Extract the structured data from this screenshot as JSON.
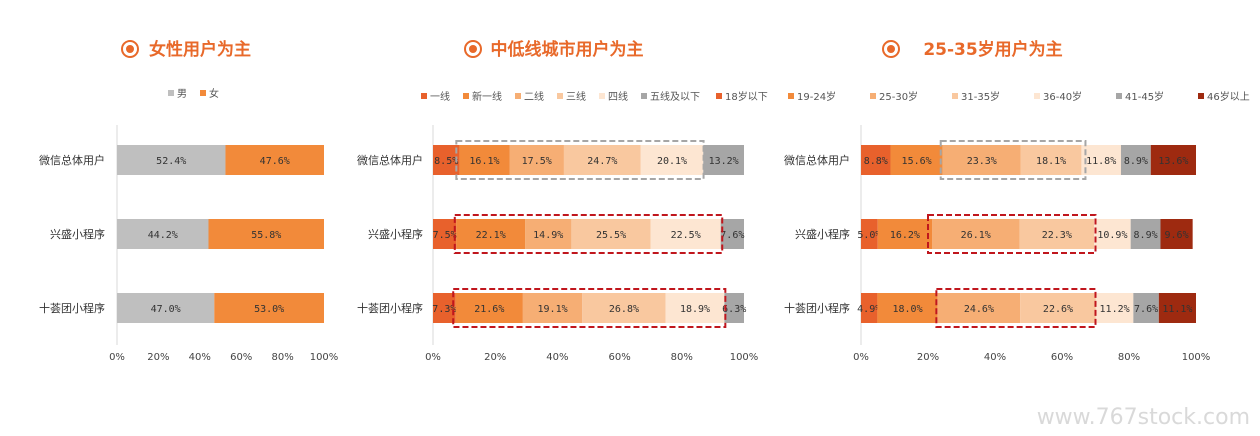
{
  "watermark": "www.767stock.com",
  "chart_data": [
    {
      "type": "bar",
      "orientation": "horizontal",
      "stacked": true,
      "title": "女性用户为主",
      "categories": [
        "微信总体用户",
        "兴盛小程序",
        "十荟团小程序"
      ],
      "series": [
        {
          "name": "男",
          "color": "#bfbfbf",
          "values": [
            52.4,
            44.2,
            47.0
          ]
        },
        {
          "name": "女",
          "color": "#f28a3a",
          "values": [
            47.6,
            55.8,
            53.0
          ]
        }
      ],
      "labels": [
        [
          "52.4%",
          "47.6%"
        ],
        [
          "44.2%",
          "55.8%"
        ],
        [
          "47.0%",
          "53.0%"
        ]
      ],
      "xticks": [
        "0%",
        "20%",
        "40%",
        "60%",
        "80%",
        "100%"
      ],
      "xlim": [
        0,
        100
      ],
      "legend": "top-center",
      "highlight_boxes": []
    },
    {
      "type": "bar",
      "orientation": "horizontal",
      "stacked": true,
      "title": "中低线城市用户为主",
      "categories": [
        "微信总体用户",
        "兴盛小程序",
        "十荟团小程序"
      ],
      "series": [
        {
          "name": "一线",
          "color": "#e8612c",
          "values": [
            8.5,
            7.5,
            7.3
          ]
        },
        {
          "name": "新一线",
          "color": "#f28a3a",
          "values": [
            16.1,
            22.1,
            21.6
          ]
        },
        {
          "name": "二线",
          "color": "#f6ae74",
          "values": [
            17.5,
            14.9,
            19.1
          ]
        },
        {
          "name": "三线",
          "color": "#f9c89f",
          "values": [
            24.7,
            25.5,
            26.8
          ]
        },
        {
          "name": "四线",
          "color": "#fde6d2",
          "values": [
            20.1,
            22.5,
            18.9
          ]
        },
        {
          "name": "五线及以下",
          "color": "#a6a6a6",
          "values": [
            13.2,
            7.6,
            6.3
          ]
        }
      ],
      "labels": [
        [
          "8.5%",
          "16.1%",
          "17.5%",
          "24.7%",
          "20.1%",
          "13.2%"
        ],
        [
          "7.5%",
          "22.1%",
          "14.9%",
          "25.5%",
          "22.5%",
          "7.6%"
        ],
        [
          "7.3%",
          "21.6%",
          "19.1%",
          "26.8%",
          "18.9%",
          "6.3%"
        ]
      ],
      "xticks": [
        "0%",
        "20%",
        "40%",
        "60%",
        "80%",
        "100%"
      ],
      "xlim": [
        0,
        100
      ],
      "legend": "top-center",
      "highlight_boxes": [
        {
          "row": 0,
          "from": 7.5,
          "to": 87,
          "style": "gray-dashed"
        },
        {
          "row": 1,
          "from": 7,
          "to": 93,
          "style": "red-dashed"
        },
        {
          "row": 2,
          "from": 6.5,
          "to": 94,
          "style": "red-dashed"
        }
      ]
    },
    {
      "type": "bar",
      "orientation": "horizontal",
      "stacked": true,
      "title": "25-35岁用户为主",
      "categories": [
        "微信总体用户",
        "兴盛小程序",
        "十荟团小程序"
      ],
      "series": [
        {
          "name": "18岁以下",
          "color": "#e8612c",
          "values": [
            8.8,
            5.0,
            4.9
          ]
        },
        {
          "name": "19-24岁",
          "color": "#f28a3a",
          "values": [
            15.6,
            16.2,
            18.0
          ]
        },
        {
          "name": "25-30岁",
          "color": "#f6ae74",
          "values": [
            23.3,
            26.1,
            24.6
          ]
        },
        {
          "name": "31-35岁",
          "color": "#f9c89f",
          "values": [
            18.1,
            22.3,
            22.6
          ]
        },
        {
          "name": "36-40岁",
          "color": "#fde6d2",
          "values": [
            11.8,
            10.9,
            11.2
          ]
        },
        {
          "name": "41-45岁",
          "color": "#a6a6a6",
          "values": [
            8.9,
            8.9,
            7.6
          ]
        },
        {
          "name": "46岁以上",
          "color": "#9e2a10",
          "values": [
            13.6,
            9.6,
            11.1
          ]
        }
      ],
      "labels": [
        [
          "8.8%",
          "15.6%",
          "23.3%",
          "18.1%",
          "11.8%",
          "8.9%",
          "13.6%"
        ],
        [
          "5.0%",
          "16.2%",
          "26.1%",
          "22.3%",
          "10.9%",
          "8.9%",
          "9.6%"
        ],
        [
          "4.9%",
          "18.0%",
          "24.6%",
          "22.6%",
          "11.2%",
          "7.6%",
          "11.1%"
        ]
      ],
      "xticks": [
        "0%",
        "20%",
        "40%",
        "60%",
        "80%",
        "100%"
      ],
      "xlim": [
        0,
        100
      ],
      "legend": "top-center",
      "highlight_boxes": [
        {
          "row": 0,
          "from": 23.8,
          "to": 67,
          "style": "gray-dashed"
        },
        {
          "row": 1,
          "from": 20,
          "to": 70,
          "style": "red-dashed"
        },
        {
          "row": 2,
          "from": 22.5,
          "to": 70,
          "style": "red-dashed"
        }
      ]
    }
  ]
}
